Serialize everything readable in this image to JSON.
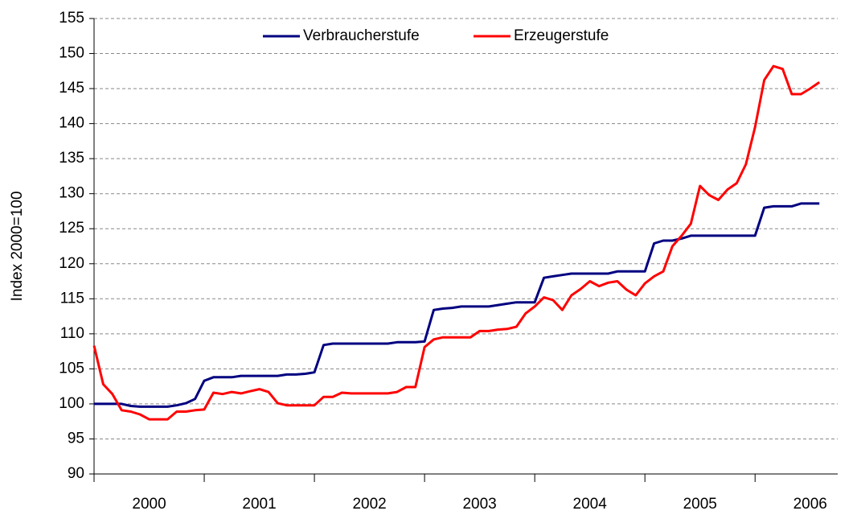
{
  "chart_data": {
    "type": "line",
    "y_label": "Index 2000=100",
    "x": [
      2000,
      2000.0833,
      2000.1667,
      2000.25,
      2000.3333,
      2000.4167,
      2000.5,
      2000.5833,
      2000.6667,
      2000.75,
      2000.8333,
      2000.9167,
      2001,
      2001.0833,
      2001.1667,
      2001.25,
      2001.3333,
      2001.4167,
      2001.5,
      2001.5833,
      2001.6667,
      2001.75,
      2001.8333,
      2001.9167,
      2002,
      2002.0833,
      2002.1667,
      2002.25,
      2002.3333,
      2002.4167,
      2002.5,
      2002.5833,
      2002.6667,
      2002.75,
      2002.8333,
      2002.9167,
      2003,
      2003.0833,
      2003.1667,
      2003.25,
      2003.3333,
      2003.4167,
      2003.5,
      2003.5833,
      2003.6667,
      2003.75,
      2003.8333,
      2003.9167,
      2004,
      2004.0833,
      2004.1667,
      2004.25,
      2004.3333,
      2004.4167,
      2004.5,
      2004.5833,
      2004.6667,
      2004.75,
      2004.8333,
      2004.9167,
      2005,
      2005.0833,
      2005.1667,
      2005.25,
      2005.3333,
      2005.4167,
      2005.5,
      2005.5833,
      2005.6667,
      2005.75,
      2005.8333,
      2005.9167,
      2006,
      2006.0833,
      2006.1667,
      2006.25,
      2006.3333,
      2006.4167,
      2006.5,
      2006.5833
    ],
    "series": [
      {
        "name": "Verbraucherstufe",
        "color": "#000080",
        "values": [
          100,
          100,
          100,
          100,
          99.7,
          99.6,
          99.6,
          99.6,
          99.6,
          99.8,
          100.1,
          100.7,
          103.3,
          103.8,
          103.8,
          103.8,
          104.0,
          104.0,
          104.0,
          104.0,
          104.0,
          104.2,
          104.2,
          104.3,
          104.5,
          108.4,
          108.6,
          108.6,
          108.6,
          108.6,
          108.6,
          108.6,
          108.6,
          108.8,
          108.8,
          108.8,
          108.9,
          113.4,
          113.6,
          113.7,
          113.9,
          113.9,
          113.9,
          113.9,
          114.1,
          114.3,
          114.5,
          114.5,
          114.5,
          118.0,
          118.2,
          118.4,
          118.6,
          118.6,
          118.6,
          118.6,
          118.6,
          118.9,
          118.9,
          118.9,
          118.9,
          122.9,
          123.3,
          123.3,
          123.6,
          124.0,
          124,
          124,
          124,
          124,
          124,
          124,
          124,
          128.0,
          128.2,
          128.2,
          128.2,
          128.6,
          128.6,
          128.6
        ]
      },
      {
        "name": "Erzeugerstufe",
        "color": "#ff0000",
        "values": [
          108.3,
          102.8,
          101.4,
          99.1,
          98.9,
          98.5,
          97.8,
          97.8,
          97.8,
          98.9,
          98.9,
          99.1,
          99.2,
          101.6,
          101.4,
          101.7,
          101.5,
          101.8,
          102.1,
          101.7,
          100.1,
          99.8,
          99.8,
          99.8,
          99.8,
          101.0,
          101.0,
          101.6,
          101.5,
          101.5,
          101.5,
          101.5,
          101.5,
          101.7,
          102.4,
          102.4,
          108.1,
          109.2,
          109.5,
          109.5,
          109.5,
          109.5,
          110.4,
          110.4,
          110.6,
          110.7,
          111.0,
          112.9,
          113.9,
          115.2,
          114.8,
          113.4,
          115.5,
          116.4,
          117.5,
          116.8,
          117.3,
          117.5,
          116.3,
          115.5,
          117.2,
          118.2,
          118.9,
          122.5,
          124.0,
          125.7,
          131.1,
          129.8,
          129.1,
          130.6,
          131.5,
          134.2,
          139.5,
          146.2,
          148.2,
          147.8,
          144.2,
          144.2,
          145.0,
          145.9
        ]
      }
    ],
    "xlim": [
      2000,
      2006.75
    ],
    "xticks": [
      {
        "value": 2000.5,
        "label": "2000"
      },
      {
        "value": 2001.5,
        "label": "2001"
      },
      {
        "value": 2002.5,
        "label": "2002"
      },
      {
        "value": 2003.5,
        "label": "2003"
      },
      {
        "value": 2004.5,
        "label": "2004"
      },
      {
        "value": 2005.5,
        "label": "2005"
      },
      {
        "value": 2006.5,
        "label": "2006"
      }
    ],
    "xminorticks": [
      2000,
      2001,
      2002,
      2003,
      2004,
      2005,
      2006
    ],
    "ylim": [
      90,
      155
    ],
    "yticks": [
      90,
      95,
      100,
      105,
      110,
      115,
      120,
      125,
      130,
      135,
      140,
      145,
      150,
      155
    ],
    "grid": true,
    "legend": "top"
  }
}
